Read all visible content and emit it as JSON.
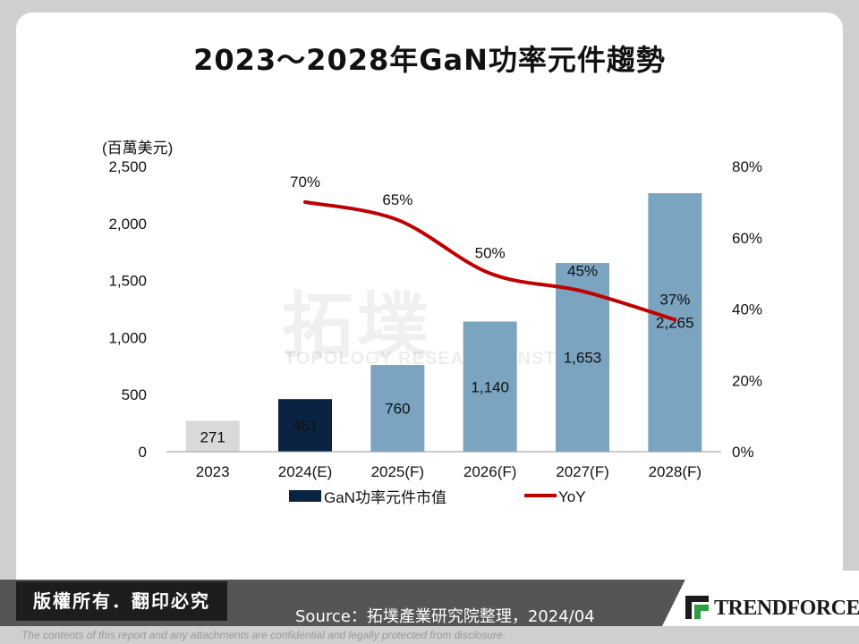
{
  "title": "2023～2028年GaN功率元件趨勢",
  "unit_label": "(百萬美元)",
  "chart_data": {
    "type": "bar",
    "categories": [
      "2023",
      "2024(E)",
      "2025(F)",
      "2026(F)",
      "2027(F)",
      "2028(F)"
    ],
    "series": [
      {
        "name": "GaN功率元件市值",
        "type": "bar",
        "axis": "left",
        "values": [
          271,
          461,
          760,
          1140,
          1653,
          2265
        ],
        "labels": [
          "271",
          "461",
          "760",
          "1,140",
          "1,653",
          "2,265"
        ]
      },
      {
        "name": "YoY",
        "type": "line",
        "axis": "right",
        "values": [
          null,
          70,
          65,
          50,
          45,
          37
        ],
        "labels": [
          "",
          "70%",
          "65%",
          "50%",
          "45%",
          "37%"
        ]
      }
    ],
    "bar_colors": [
      "#d9d9d9",
      "#0b2343",
      "#7aa4c0",
      "#7aa4c0",
      "#7aa4c0",
      "#7aa4c0"
    ],
    "line_color": "#c00000",
    "left_axis": {
      "ylim": [
        0,
        2500
      ],
      "ticks": [
        "0",
        "500",
        "1,000",
        "1,500",
        "2,000",
        "2,500"
      ]
    },
    "right_axis": {
      "ylim": [
        0,
        80
      ],
      "ticks": [
        "0%",
        "20%",
        "40%",
        "60%",
        "80%"
      ]
    },
    "legend_placement": "bottom",
    "grid": false
  },
  "watermark": {
    "main": "拓墣",
    "sub": "TOPOLOGY RESEARCH INSTITUTE"
  },
  "footer": {
    "copyright": "版權所有．翻印必究",
    "source": "Source：拓墣產業研究院整理，2024/04",
    "brand": "TRENDFORCE",
    "disclaimer": "The contents of this report and any attachments are confidential and legally protected from disclosure."
  }
}
